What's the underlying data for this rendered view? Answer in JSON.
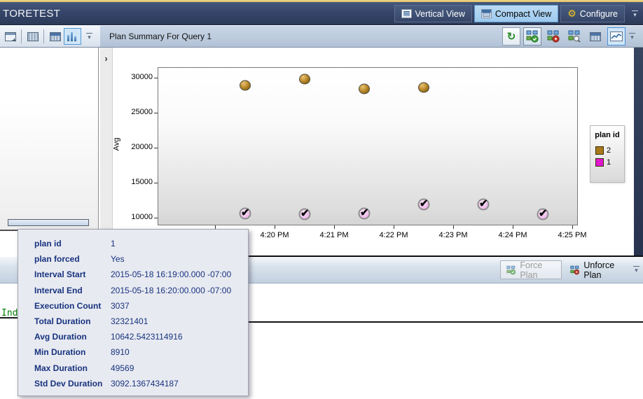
{
  "icons": {
    "refresh": "↻",
    "expander": "›",
    "check_mark": "✔",
    "gear": "⚙"
  },
  "window_title": "TORETEST",
  "titlebar": {
    "vertical_view": "Vertical View",
    "compact_view": "Compact View",
    "configure": "Configure"
  },
  "plan_summary": {
    "title": "Plan Summary For Query 1"
  },
  "chart_data": {
    "type": "scatter",
    "title": "Plan Summary For Query 1",
    "xlabel": "",
    "ylabel": "Avg",
    "y_ticks": [
      10000,
      15000,
      20000,
      25000,
      30000
    ],
    "y_range": [
      8900,
      31600
    ],
    "x_ticks": [
      "4:19 PM",
      "4:20 PM",
      "4:21 PM",
      "4:22 PM",
      "4:23 PM",
      "4:24 PM",
      "4:25 PM"
    ],
    "legend": {
      "title": "plan id",
      "entries": [
        {
          "label": "2",
          "color": "#A8791B"
        },
        {
          "label": "1",
          "color": "#E016D0"
        }
      ]
    },
    "series": [
      {
        "name": "2",
        "marker": "sphere",
        "color": "#A8791B",
        "points": [
          {
            "time_min": 19.5,
            "avg": 28900
          },
          {
            "time_min": 20.5,
            "avg": 29800
          },
          {
            "time_min": 21.5,
            "avg": 28400
          },
          {
            "time_min": 22.5,
            "avg": 28600
          }
        ]
      },
      {
        "name": "1",
        "marker": "check",
        "color": "#E016D0",
        "points": [
          {
            "time_min": 19.5,
            "avg": 10642
          },
          {
            "time_min": 20.5,
            "avg": 10500
          },
          {
            "time_min": 21.5,
            "avg": 10600
          },
          {
            "time_min": 22.5,
            "avg": 11950
          },
          {
            "time_min": 23.5,
            "avg": 11900
          },
          {
            "time_min": 24.5,
            "avg": 10500
          }
        ]
      }
    ]
  },
  "tooltip": {
    "rows": [
      {
        "label": "plan id",
        "value": "1"
      },
      {
        "label": "plan forced",
        "value": "Yes"
      },
      {
        "label": "Interval Start",
        "value": "2015-05-18 16:19:00.000 -07:00"
      },
      {
        "label": "Interval End",
        "value": "2015-05-18 16:20:00.000 -07:00"
      },
      {
        "label": "Execution Count",
        "value": "3037"
      },
      {
        "label": "Total Duration",
        "value": "32321401"
      },
      {
        "label": "Avg Duration",
        "value": "10642.5423114916"
      },
      {
        "label": "Min Duration",
        "value": "8910"
      },
      {
        "label": "Max Duration",
        "value": "49569"
      },
      {
        "label": "Std Dev Duration",
        "value": "3092.1367434187"
      }
    ]
  },
  "force_toolbar": {
    "force": "Force Plan",
    "unforce": "Unforce Plan"
  },
  "editor": {
    "visible_text": "Ind"
  }
}
